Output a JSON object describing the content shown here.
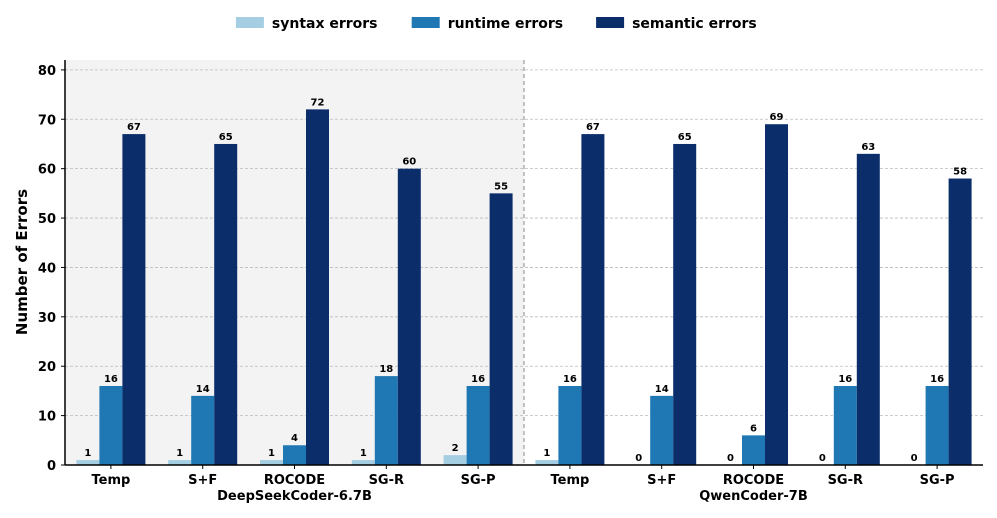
{
  "chart_data": {
    "type": "bar",
    "title": "",
    "xlabel": "",
    "ylabel": "Number of Errors",
    "ylim": [
      0,
      82
    ],
    "yticks": [
      0,
      10,
      20,
      30,
      40,
      50,
      60,
      70,
      80
    ],
    "grid": true,
    "legend_position": "top-center",
    "groups": [
      {
        "name": "DeepSeekCoder-6.7B",
        "categories": [
          "Temp",
          "S+F",
          "ROCODE",
          "SG-R",
          "SG-P"
        ],
        "series": [
          {
            "name": "syntax errors",
            "values": [
              1,
              1,
              1,
              1,
              2
            ]
          },
          {
            "name": "runtime errors",
            "values": [
              16,
              14,
              4,
              18,
              16
            ]
          },
          {
            "name": "semantic errors",
            "values": [
              67,
              65,
              72,
              60,
              55
            ]
          }
        ]
      },
      {
        "name": "QwenCoder-7B",
        "categories": [
          "Temp",
          "S+F",
          "ROCODE",
          "SG-R",
          "SG-P"
        ],
        "series": [
          {
            "name": "syntax errors",
            "values": [
              1,
              0,
              0,
              0,
              0
            ]
          },
          {
            "name": "runtime errors",
            "values": [
              16,
              14,
              6,
              16,
              16
            ]
          },
          {
            "name": "semantic errors",
            "values": [
              67,
              65,
              69,
              63,
              58
            ]
          }
        ]
      }
    ],
    "colors": {
      "syntax errors": "#a6cee3",
      "runtime errors": "#1f78b4",
      "semantic errors": "#0b2e6b",
      "shaded_panel": "#f3f3f3",
      "grid": "#bbbbbb"
    }
  }
}
